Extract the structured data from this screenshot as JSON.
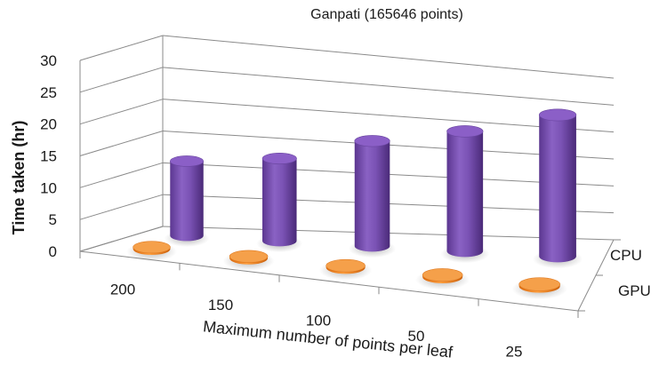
{
  "chart_data": {
    "type": "bar",
    "subtype": "3d-cylinder",
    "title": "Ganpati (165646 points)",
    "xlabel": "Maximum number of points per leaf",
    "ylabel": "Time taken (hr)",
    "ylim": [
      0,
      30
    ],
    "yticks": [
      "0",
      "5",
      "10",
      "15",
      "20",
      "25",
      "30"
    ],
    "grid": true,
    "categories": [
      "200",
      "150",
      "100",
      "50",
      "25"
    ],
    "series": [
      {
        "name": "GPU",
        "values": [
          0.3,
          0.3,
          0.3,
          0.3,
          0.3
        ],
        "color": "#f5891f"
      },
      {
        "name": "CPU",
        "values": [
          13.5,
          14.5,
          18,
          20,
          23
        ],
        "color": "#7b4fb0"
      }
    ]
  }
}
